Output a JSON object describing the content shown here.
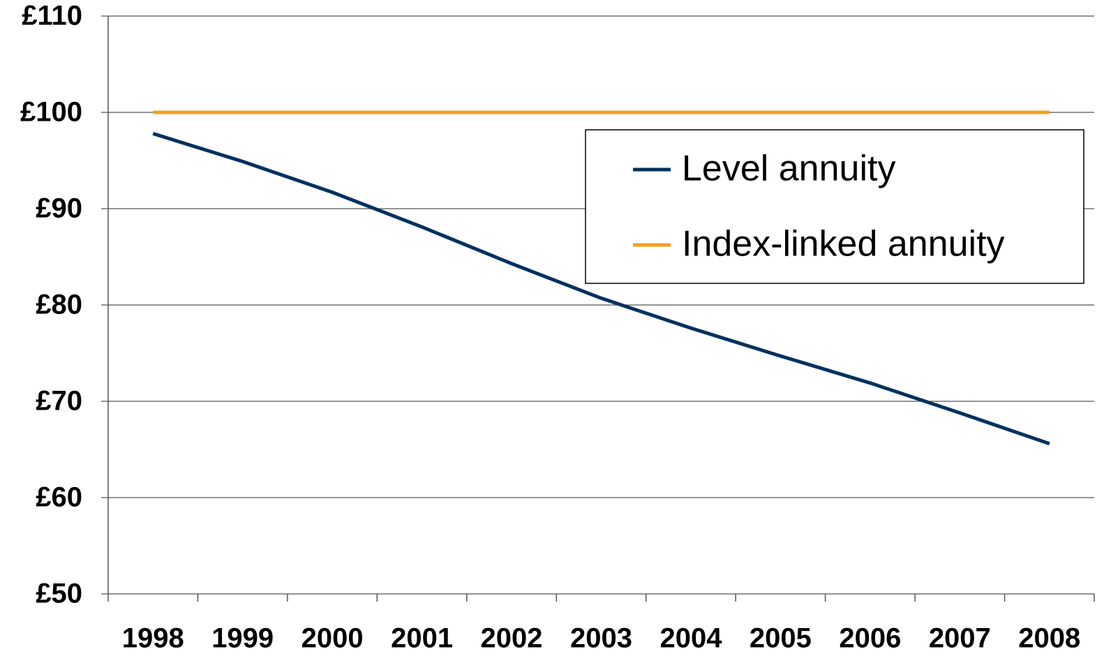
{
  "chart_data": {
    "type": "line",
    "categories": [
      "1998",
      "1999",
      "2000",
      "2001",
      "2002",
      "2003",
      "2004",
      "2005",
      "2006",
      "2007",
      "2008"
    ],
    "series": [
      {
        "name": "Level annuity",
        "color": "#00315f",
        "values": [
          97.8,
          94.9,
          91.7,
          88.1,
          84.3,
          80.7,
          77.6,
          74.7,
          71.9,
          68.8,
          65.6
        ]
      },
      {
        "name": "Index-linked annuity",
        "color": "#f7a01c",
        "values": [
          100,
          100,
          100,
          100,
          100,
          100,
          100,
          100,
          100,
          100,
          100
        ]
      }
    ],
    "ylim": [
      50,
      110
    ],
    "yticks": [
      {
        "value": 50,
        "label": "£50"
      },
      {
        "value": 60,
        "label": "£60"
      },
      {
        "value": 70,
        "label": "£70"
      },
      {
        "value": 80,
        "label": "£80"
      },
      {
        "value": 90,
        "label": "£90"
      },
      {
        "value": 100,
        "label": "£100"
      },
      {
        "value": 110,
        "label": "£110"
      }
    ],
    "grid": true,
    "legend": "upper right"
  }
}
